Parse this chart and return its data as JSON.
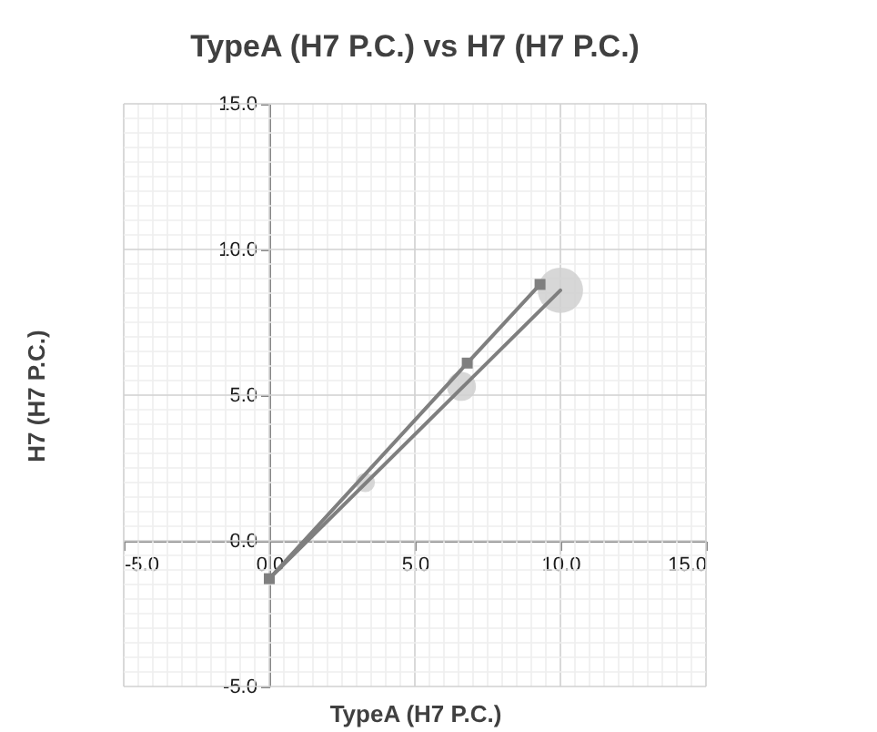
{
  "chart_data": {
    "type": "bubble",
    "title": "TypeA (H7 P.C.)  vs H7 (H7 P.C.)",
    "xlabel": "TypeA (H7 P.C.)",
    "ylabel": "H7 (H7 P.C.)",
    "grid": true,
    "xlim": [
      -5,
      15
    ],
    "ylim": [
      -5,
      15
    ],
    "xticks": [
      {
        "value": -5,
        "label": "-5.0"
      },
      {
        "value": -4.5,
        "label": null
      },
      {
        "value": -4,
        "label": null
      },
      {
        "value": -3.5,
        "label": null
      },
      {
        "value": -3,
        "label": null
      },
      {
        "value": -2.5,
        "label": null
      },
      {
        "value": -2,
        "label": null
      },
      {
        "value": -1.5,
        "label": null
      },
      {
        "value": -1,
        "label": null
      },
      {
        "value": -0.5,
        "label": null
      },
      {
        "value": 0,
        "label": "0.0"
      },
      {
        "value": 0.5,
        "label": null
      },
      {
        "value": 1,
        "label": null
      },
      {
        "value": 1.5,
        "label": null
      },
      {
        "value": 2,
        "label": null
      },
      {
        "value": 2.5,
        "label": null
      },
      {
        "value": 3,
        "label": null
      },
      {
        "value": 3.5,
        "label": null
      },
      {
        "value": 4,
        "label": null
      },
      {
        "value": 4.5,
        "label": null
      },
      {
        "value": 5,
        "label": "5.0"
      },
      {
        "value": 5.5,
        "label": null
      },
      {
        "value": 6,
        "label": null
      },
      {
        "value": 6.5,
        "label": null
      },
      {
        "value": 7,
        "label": null
      },
      {
        "value": 7.5,
        "label": null
      },
      {
        "value": 8,
        "label": null
      },
      {
        "value": 8.5,
        "label": null
      },
      {
        "value": 9,
        "label": null
      },
      {
        "value": 9.5,
        "label": null
      },
      {
        "value": 10,
        "label": "10.0"
      },
      {
        "value": 10.5,
        "label": null
      },
      {
        "value": 11,
        "label": null
      },
      {
        "value": 11.5,
        "label": null
      },
      {
        "value": 12,
        "label": null
      },
      {
        "value": 12.5,
        "label": null
      },
      {
        "value": 13,
        "label": null
      },
      {
        "value": 13.5,
        "label": null
      },
      {
        "value": 14,
        "label": null
      },
      {
        "value": 14.5,
        "label": null
      },
      {
        "value": 15,
        "label": "15.0"
      }
    ],
    "yticks": [
      {
        "value": -5,
        "label": "-5.0"
      },
      {
        "value": -4.5,
        "label": null
      },
      {
        "value": -4,
        "label": null
      },
      {
        "value": -3.5,
        "label": null
      },
      {
        "value": -3,
        "label": null
      },
      {
        "value": -2.5,
        "label": null
      },
      {
        "value": -2,
        "label": null
      },
      {
        "value": -1.5,
        "label": null
      },
      {
        "value": -1,
        "label": null
      },
      {
        "value": -0.5,
        "label": null
      },
      {
        "value": 0,
        "label": "0.0"
      },
      {
        "value": 0.5,
        "label": null
      },
      {
        "value": 1,
        "label": null
      },
      {
        "value": 1.5,
        "label": null
      },
      {
        "value": 2,
        "label": null
      },
      {
        "value": 2.5,
        "label": null
      },
      {
        "value": 3,
        "label": null
      },
      {
        "value": 3.5,
        "label": null
      },
      {
        "value": 4,
        "label": null
      },
      {
        "value": 4.5,
        "label": null
      },
      {
        "value": 5,
        "label": "5.0"
      },
      {
        "value": 5.5,
        "label": null
      },
      {
        "value": 6,
        "label": null
      },
      {
        "value": 6.5,
        "label": null
      },
      {
        "value": 7,
        "label": null
      },
      {
        "value": 7.5,
        "label": null
      },
      {
        "value": 8,
        "label": null
      },
      {
        "value": 8.5,
        "label": null
      },
      {
        "value": 9,
        "label": null
      },
      {
        "value": 9.5,
        "label": null
      },
      {
        "value": 10,
        "label": "10.0"
      },
      {
        "value": 10.5,
        "label": null
      },
      {
        "value": 11,
        "label": null
      },
      {
        "value": 11.5,
        "label": null
      },
      {
        "value": 12,
        "label": null
      },
      {
        "value": 12.5,
        "label": null
      },
      {
        "value": 13,
        "label": null
      },
      {
        "value": 13.5,
        "label": null
      },
      {
        "value": 14,
        "label": null
      },
      {
        "value": 14.5,
        "label": null
      },
      {
        "value": 15,
        "label": "15.0"
      }
    ],
    "series": [
      {
        "color": "#d0d0d0",
        "x": [
          3.3,
          6.6,
          10.0
        ],
        "values": [
          2.0,
          5.3,
          8.6
        ],
        "sizes": [
          0.18,
          0.41,
          1
        ]
      },
      {
        "type": "line",
        "marker": "square",
        "color": "#7f7f7f",
        "x": [
          0,
          6.8,
          9.3
        ],
        "values": [
          -1.3,
          6.1,
          8.8
        ]
      },
      {
        "type": "line",
        "marker": "none",
        "color": "#7f7f7f",
        "x": [
          0,
          10.0
        ],
        "values": [
          -1.3,
          8.6
        ]
      }
    ]
  }
}
